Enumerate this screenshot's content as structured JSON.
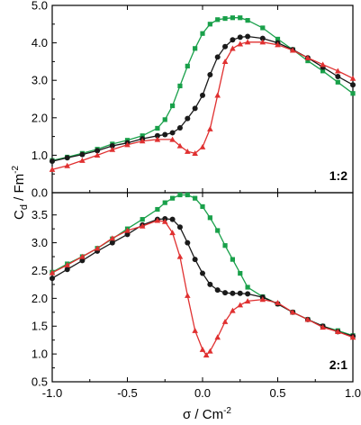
{
  "chart_data": [
    {
      "type": "line",
      "panel_label": "1:2",
      "xlim": [
        -1.0,
        1.0
      ],
      "ylim": [
        0.0,
        5.0
      ],
      "x_ticks": [
        "-1.0",
        "-0.5",
        "0.0",
        "0.5",
        "1.0"
      ],
      "y_ticks": [
        "0.0",
        "1.0",
        "2.0",
        "3.0",
        "4.0",
        "5.0"
      ],
      "series": [
        {
          "color": "#19a04a",
          "marker": "square",
          "x": [
            -1.0,
            -0.9,
            -0.8,
            -0.7,
            -0.6,
            -0.5,
            -0.4,
            -0.3,
            -0.25,
            -0.2,
            -0.15,
            -0.1,
            -0.05,
            0.0,
            0.05,
            0.1,
            0.15,
            0.2,
            0.25,
            0.3,
            0.4,
            0.5,
            0.6,
            0.7,
            0.8,
            0.9,
            1.0
          ],
          "y": [
            0.86,
            0.95,
            1.05,
            1.16,
            1.3,
            1.4,
            1.52,
            1.72,
            1.95,
            2.32,
            2.85,
            3.38,
            3.85,
            4.25,
            4.5,
            4.62,
            4.65,
            4.67,
            4.67,
            4.6,
            4.4,
            4.1,
            3.82,
            3.52,
            3.25,
            2.95,
            2.65
          ]
        },
        {
          "color": "#1a1a1a",
          "marker": "circle",
          "x": [
            -1.0,
            -0.9,
            -0.8,
            -0.7,
            -0.6,
            -0.5,
            -0.4,
            -0.3,
            -0.25,
            -0.2,
            -0.15,
            -0.1,
            -0.05,
            0.0,
            0.05,
            0.1,
            0.15,
            0.2,
            0.25,
            0.3,
            0.4,
            0.5,
            0.6,
            0.7,
            0.8,
            0.9,
            1.0
          ],
          "y": [
            0.84,
            0.93,
            1.02,
            1.12,
            1.25,
            1.33,
            1.44,
            1.52,
            1.55,
            1.6,
            1.73,
            1.98,
            2.25,
            2.6,
            3.15,
            3.62,
            3.9,
            4.08,
            4.15,
            4.17,
            4.12,
            4.0,
            3.82,
            3.6,
            3.35,
            3.1,
            2.88
          ]
        },
        {
          "color": "#e03030",
          "marker": "triangle",
          "x": [
            -1.0,
            -0.9,
            -0.8,
            -0.7,
            -0.6,
            -0.5,
            -0.4,
            -0.3,
            -0.2,
            -0.15,
            -0.1,
            -0.05,
            0.0,
            0.05,
            0.1,
            0.15,
            0.2,
            0.25,
            0.3,
            0.4,
            0.5,
            0.6,
            0.7,
            0.8,
            0.9,
            1.0
          ],
          "y": [
            0.62,
            0.72,
            0.86,
            1.0,
            1.15,
            1.28,
            1.38,
            1.42,
            1.42,
            1.25,
            1.1,
            1.05,
            1.22,
            1.7,
            2.6,
            3.5,
            3.85,
            3.97,
            4.02,
            4.02,
            3.95,
            3.8,
            3.6,
            3.42,
            3.25,
            3.05
          ]
        }
      ]
    },
    {
      "type": "line",
      "panel_label": "2:1",
      "xlim": [
        -1.0,
        1.0
      ],
      "ylim": [
        0.5,
        3.9
      ],
      "x_ticks": [
        "-1.0",
        "-0.5",
        "0.0",
        "0.5",
        "1.0"
      ],
      "y_ticks": [
        "0.5",
        "1.0",
        "1.5",
        "2.0",
        "2.5",
        "3.0",
        "3.5"
      ],
      "series": [
        {
          "color": "#19a04a",
          "marker": "square",
          "x": [
            -1.0,
            -0.9,
            -0.8,
            -0.7,
            -0.6,
            -0.5,
            -0.4,
            -0.3,
            -0.25,
            -0.2,
            -0.15,
            -0.1,
            -0.05,
            0.0,
            0.05,
            0.1,
            0.15,
            0.2,
            0.25,
            0.3,
            0.4,
            0.5,
            0.6,
            0.7,
            0.8,
            0.9,
            1.0
          ],
          "y": [
            2.47,
            2.62,
            2.75,
            2.9,
            3.07,
            3.25,
            3.42,
            3.6,
            3.72,
            3.8,
            3.86,
            3.86,
            3.8,
            3.65,
            3.45,
            3.22,
            2.95,
            2.7,
            2.45,
            2.2,
            2.03,
            1.9,
            1.75,
            1.62,
            1.5,
            1.42,
            1.33
          ]
        },
        {
          "color": "#1a1a1a",
          "marker": "circle",
          "x": [
            -1.0,
            -0.9,
            -0.8,
            -0.7,
            -0.6,
            -0.5,
            -0.4,
            -0.3,
            -0.25,
            -0.2,
            -0.15,
            -0.1,
            -0.05,
            0.0,
            0.05,
            0.1,
            0.15,
            0.2,
            0.25,
            0.3,
            0.4,
            0.5,
            0.6,
            0.7,
            0.8,
            0.9,
            1.0
          ],
          "y": [
            2.36,
            2.52,
            2.68,
            2.85,
            3.0,
            3.15,
            3.32,
            3.42,
            3.43,
            3.42,
            3.28,
            3.0,
            2.7,
            2.45,
            2.25,
            2.15,
            2.1,
            2.09,
            2.09,
            2.08,
            2.02,
            1.9,
            1.75,
            1.62,
            1.5,
            1.4,
            1.32
          ]
        },
        {
          "color": "#e03030",
          "marker": "triangle",
          "x": [
            -1.0,
            -0.9,
            -0.8,
            -0.7,
            -0.6,
            -0.5,
            -0.4,
            -0.3,
            -0.25,
            -0.2,
            -0.15,
            -0.1,
            -0.05,
            0.0,
            0.025,
            0.05,
            0.1,
            0.15,
            0.2,
            0.25,
            0.3,
            0.4,
            0.5,
            0.6,
            0.7,
            0.8,
            0.9,
            1.0
          ],
          "y": [
            2.46,
            2.6,
            2.75,
            2.9,
            3.08,
            3.22,
            3.3,
            3.4,
            3.38,
            3.18,
            2.75,
            2.05,
            1.42,
            1.08,
            0.98,
            1.05,
            1.3,
            1.58,
            1.78,
            1.88,
            1.95,
            1.98,
            1.92,
            1.75,
            1.62,
            1.48,
            1.4,
            1.3
          ]
        }
      ]
    }
  ],
  "axes": {
    "ylabel_main": "C",
    "ylabel_sub": "d",
    "ylabel_unit": " / Fm",
    "ylabel_sup": "-2",
    "xlabel_main": "σ / Cm",
    "xlabel_sup": "-2"
  }
}
